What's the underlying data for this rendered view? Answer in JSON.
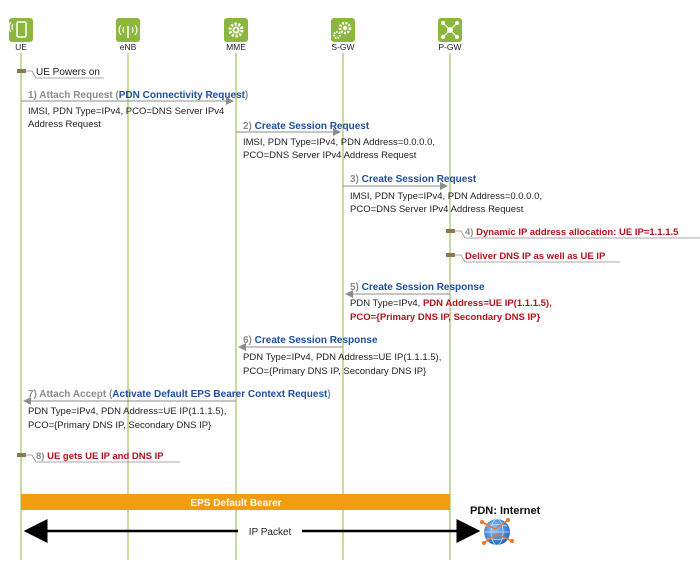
{
  "entities": [
    {
      "label": "UE",
      "icon": "phone-icon"
    },
    {
      "label": "eNB",
      "icon": "antenna-icon"
    },
    {
      "label": "MME",
      "icon": "gear-icon"
    },
    {
      "label": "S-GW",
      "icon": "gear-pair-icon"
    },
    {
      "label": "P-GW",
      "icon": "network-node-icon"
    }
  ],
  "colors": {
    "entity": "#8cb73e",
    "blue": "#1f4e9c",
    "red": "#b3121b",
    "gray": "#8c8c8c",
    "bearer": "#f39c12",
    "text": "#222222"
  },
  "messages": [
    {
      "parts": [
        {
          "text": "UE Powers on",
          "color": "text"
        }
      ],
      "params": []
    },
    {
      "parts": [
        {
          "text": "1) Attach Request (",
          "color": "gray"
        },
        {
          "text": "PDN Connectivity Request",
          "color": "blue"
        },
        {
          "text": ")",
          "color": "gray"
        }
      ],
      "params": [
        "IMSI, PDN Type=IPv4, PCO=DNS Server IPv4",
        "Address Request"
      ]
    },
    {
      "parts": [
        {
          "text": "2) ",
          "color": "gray"
        },
        {
          "text": "Create Session Request",
          "color": "blue"
        }
      ],
      "params": [
        "IMSI, PDN Type=IPv4, PDN Address=0.0.0.0,",
        "PCO=DNS Server IPv4 Address Request"
      ]
    },
    {
      "parts": [
        {
          "text": "3) ",
          "color": "gray"
        },
        {
          "text": "Create Session Request",
          "color": "blue"
        }
      ],
      "params": [
        "IMSI, PDN Type=IPv4, PDN Address=0.0.0.0,",
        "PCO=DNS Server IPv4 Address Request"
      ]
    },
    {
      "parts": [
        {
          "text": "4) ",
          "color": "gray"
        },
        {
          "text": "Dynamic IP address allocation: UE IP=1.1.1.5",
          "color": "red"
        }
      ],
      "params": []
    },
    {
      "parts": [
        {
          "text": "Deliver DNS IP as well as UE IP",
          "color": "red"
        }
      ],
      "params": []
    },
    {
      "parts": [
        {
          "text": "5) ",
          "color": "gray"
        },
        {
          "text": "Create Session Response",
          "color": "blue"
        }
      ],
      "params": [
        "PDN Type=IPv4, ",
        "PCO={Primary DNS IP, Secondary DNS IP}"
      ],
      "params_red": [
        "PDN Address=UE IP(1.1.1.5),"
      ]
    },
    {
      "parts": [
        {
          "text": "6) ",
          "color": "gray"
        },
        {
          "text": "Create Session Response",
          "color": "blue"
        }
      ],
      "params": [
        "PDN Type=IPv4, PDN Address=UE IP(1.1.1.5),",
        "PCO={Primary DNS IP, Secondary DNS IP}"
      ]
    },
    {
      "parts": [
        {
          "text": "7) Attach Accept (",
          "color": "gray"
        },
        {
          "text": "Activate Default EPS Bearer Context Request",
          "color": "blue"
        },
        {
          "text": ")",
          "color": "gray"
        }
      ],
      "params": [
        "PDN Type=IPv4, PDN Address=UE IP(1.1.1.5),",
        "PCO={Primary DNS IP, Secondary DNS IP}"
      ]
    },
    {
      "parts": [
        {
          "text": "8) ",
          "color": "gray"
        },
        {
          "text": "UE gets UE IP and DNS IP",
          "color": "red"
        }
      ],
      "params": []
    }
  ],
  "bearer": {
    "label": "EPS Default Bearer"
  },
  "pdn": {
    "label": "PDN: Internet",
    "icon": "globe-icon"
  },
  "ip_packet": {
    "label": "IP Packet"
  }
}
